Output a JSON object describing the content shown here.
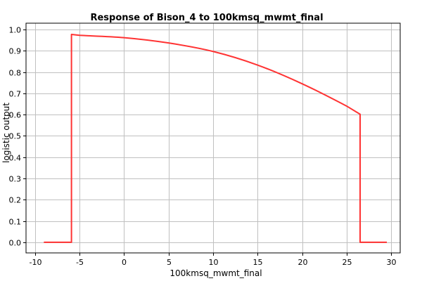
{
  "chart_data": {
    "type": "line",
    "title": "Response of Bison_4 to 100kmsq_mwmt_final",
    "xlabel": "100kmsq_mwmt_final",
    "ylabel": "logistic output",
    "xlim": [
      -11,
      31
    ],
    "ylim": [
      -0.05,
      1.03
    ],
    "x_ticks": [
      -10,
      -5,
      0,
      5,
      10,
      15,
      20,
      25,
      30
    ],
    "y_ticks": [
      0.0,
      0.1,
      0.2,
      0.3,
      0.4,
      0.5,
      0.6,
      0.7,
      0.8,
      0.9,
      1.0
    ],
    "x_tick_labels": [
      "-10",
      "-5",
      "0",
      "5",
      "10",
      "15",
      "20",
      "25",
      "30"
    ],
    "y_tick_labels": [
      "0.0",
      "0.1",
      "0.2",
      "0.3",
      "0.4",
      "0.5",
      "0.6",
      "0.7",
      "0.8",
      "0.9",
      "1.0"
    ],
    "grid": true,
    "series": [
      {
        "color": "#ff3333",
        "x": [
          -9,
          -5.9,
          -5.9,
          -5,
          0,
          5,
          10,
          15,
          20,
          25,
          26.5,
          26.5,
          29.5
        ],
        "y": [
          0.0,
          0.0,
          0.977,
          0.973,
          0.962,
          0.937,
          0.897,
          0.833,
          0.745,
          0.64,
          0.602,
          0.0,
          0.0
        ]
      }
    ]
  }
}
